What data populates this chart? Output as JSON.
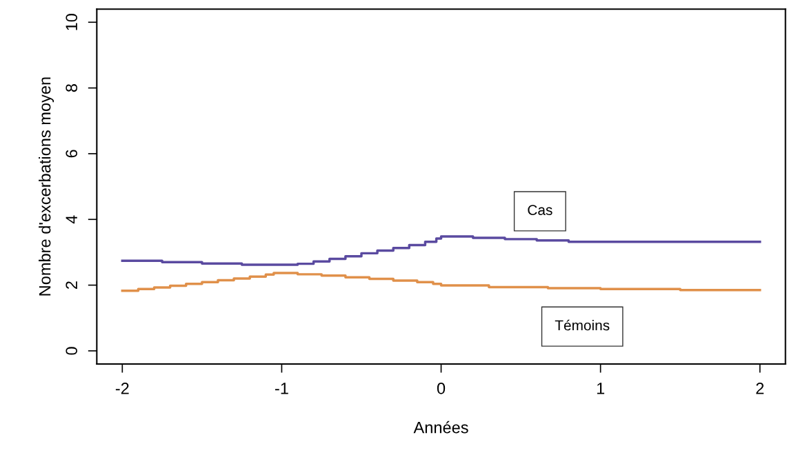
{
  "chart_data": {
    "type": "step",
    "xlabel": "Années",
    "ylabel": "Nombre d'excerbations moyen",
    "xlim": [
      -2.16,
      2.16
    ],
    "ylim": [
      -0.4,
      10.4
    ],
    "xticks": [
      -2,
      -1,
      0,
      1,
      2
    ],
    "yticks": [
      0,
      2,
      4,
      6,
      8,
      10
    ],
    "grid": false,
    "legend": false,
    "series": [
      {
        "name": "Cas",
        "color": "#5a4aa0",
        "x": [
          -2,
          -1.75,
          -1.5,
          -1.25,
          -0.96,
          -0.9,
          -0.8,
          -0.7,
          -0.6,
          -0.5,
          -0.4,
          -0.3,
          -0.2,
          -0.1,
          -0.03,
          0,
          0.2,
          0.4,
          0.6,
          0.8,
          2
        ],
        "values": [
          2.74,
          2.7,
          2.66,
          2.62,
          2.62,
          2.65,
          2.72,
          2.8,
          2.88,
          2.97,
          3.05,
          3.13,
          3.22,
          3.32,
          3.42,
          3.48,
          3.44,
          3.4,
          3.36,
          3.32,
          3.32
        ]
      },
      {
        "name": "Témoins",
        "color": "#e0904a",
        "x": [
          -2,
          -1.9,
          -1.8,
          -1.7,
          -1.6,
          -1.5,
          -1.4,
          -1.3,
          -1.2,
          -1.1,
          -1.05,
          -0.9,
          -0.75,
          -0.6,
          -0.45,
          -0.3,
          -0.15,
          -0.05,
          0,
          0.3,
          0.67,
          1,
          1.5,
          2
        ],
        "values": [
          1.83,
          1.88,
          1.93,
          1.98,
          2.04,
          2.09,
          2.15,
          2.2,
          2.26,
          2.32,
          2.37,
          2.33,
          2.29,
          2.24,
          2.19,
          2.14,
          2.09,
          2.04,
          1.99,
          1.94,
          1.91,
          1.88,
          1.85,
          1.85
        ]
      }
    ]
  }
}
